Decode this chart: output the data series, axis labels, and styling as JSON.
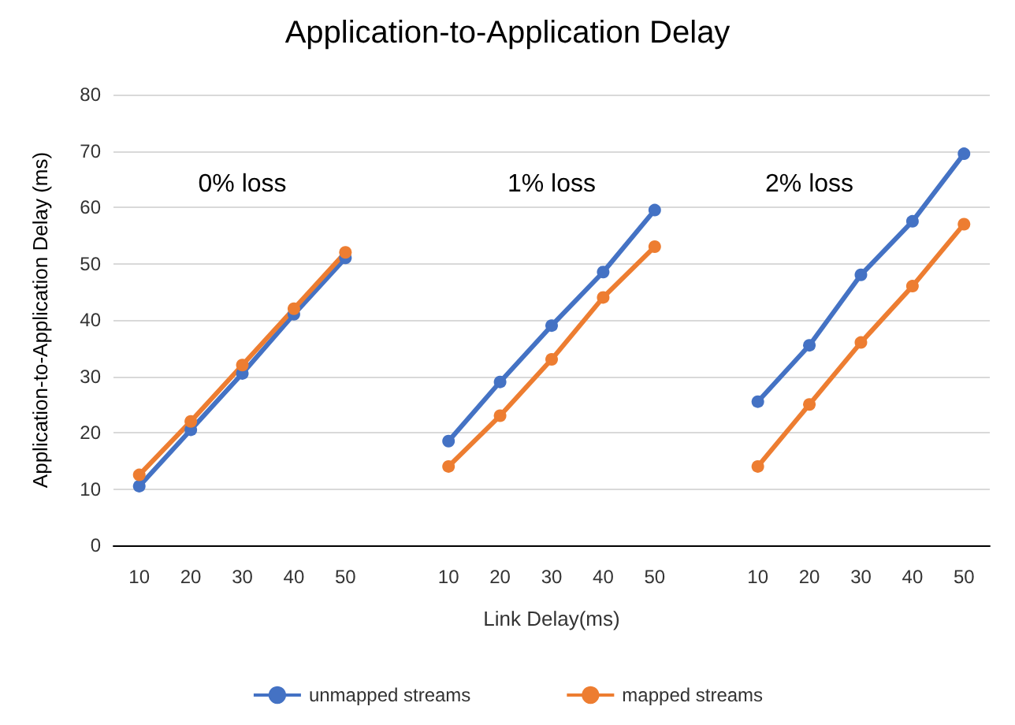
{
  "chart_data": {
    "type": "line",
    "title": "Application-to-Application Delay",
    "xlabel": "Link Delay(ms)",
    "ylabel": "Application-to-Application Delay (ms)",
    "categories": [
      "10",
      "20",
      "30",
      "40",
      "50",
      null,
      "10",
      "20",
      "30",
      "40",
      "50",
      null,
      "10",
      "20",
      "30",
      "40",
      "50"
    ],
    "series": [
      {
        "name": "unmapped streams",
        "color": "#4472c4",
        "values": [
          10.5,
          20.5,
          30.5,
          41,
          51,
          null,
          18.5,
          29,
          39,
          48.5,
          59.5,
          null,
          25.5,
          35.5,
          48,
          57.5,
          69.5
        ]
      },
      {
        "name": "mapped streams",
        "color": "#ed7d31",
        "values": [
          12.5,
          22,
          32,
          42,
          52,
          null,
          14,
          23,
          33,
          44,
          53,
          null,
          14,
          25,
          36,
          46,
          57
        ]
      }
    ],
    "annotations": [
      "0% loss",
      "1% loss",
      "2% loss"
    ],
    "ylim": [
      0,
      80
    ],
    "yticks": [
      0,
      10,
      20,
      30,
      40,
      50,
      60,
      70,
      80
    ],
    "grid": "y",
    "legend": "bottom",
    "marker": "circle",
    "line_style": "solid"
  }
}
